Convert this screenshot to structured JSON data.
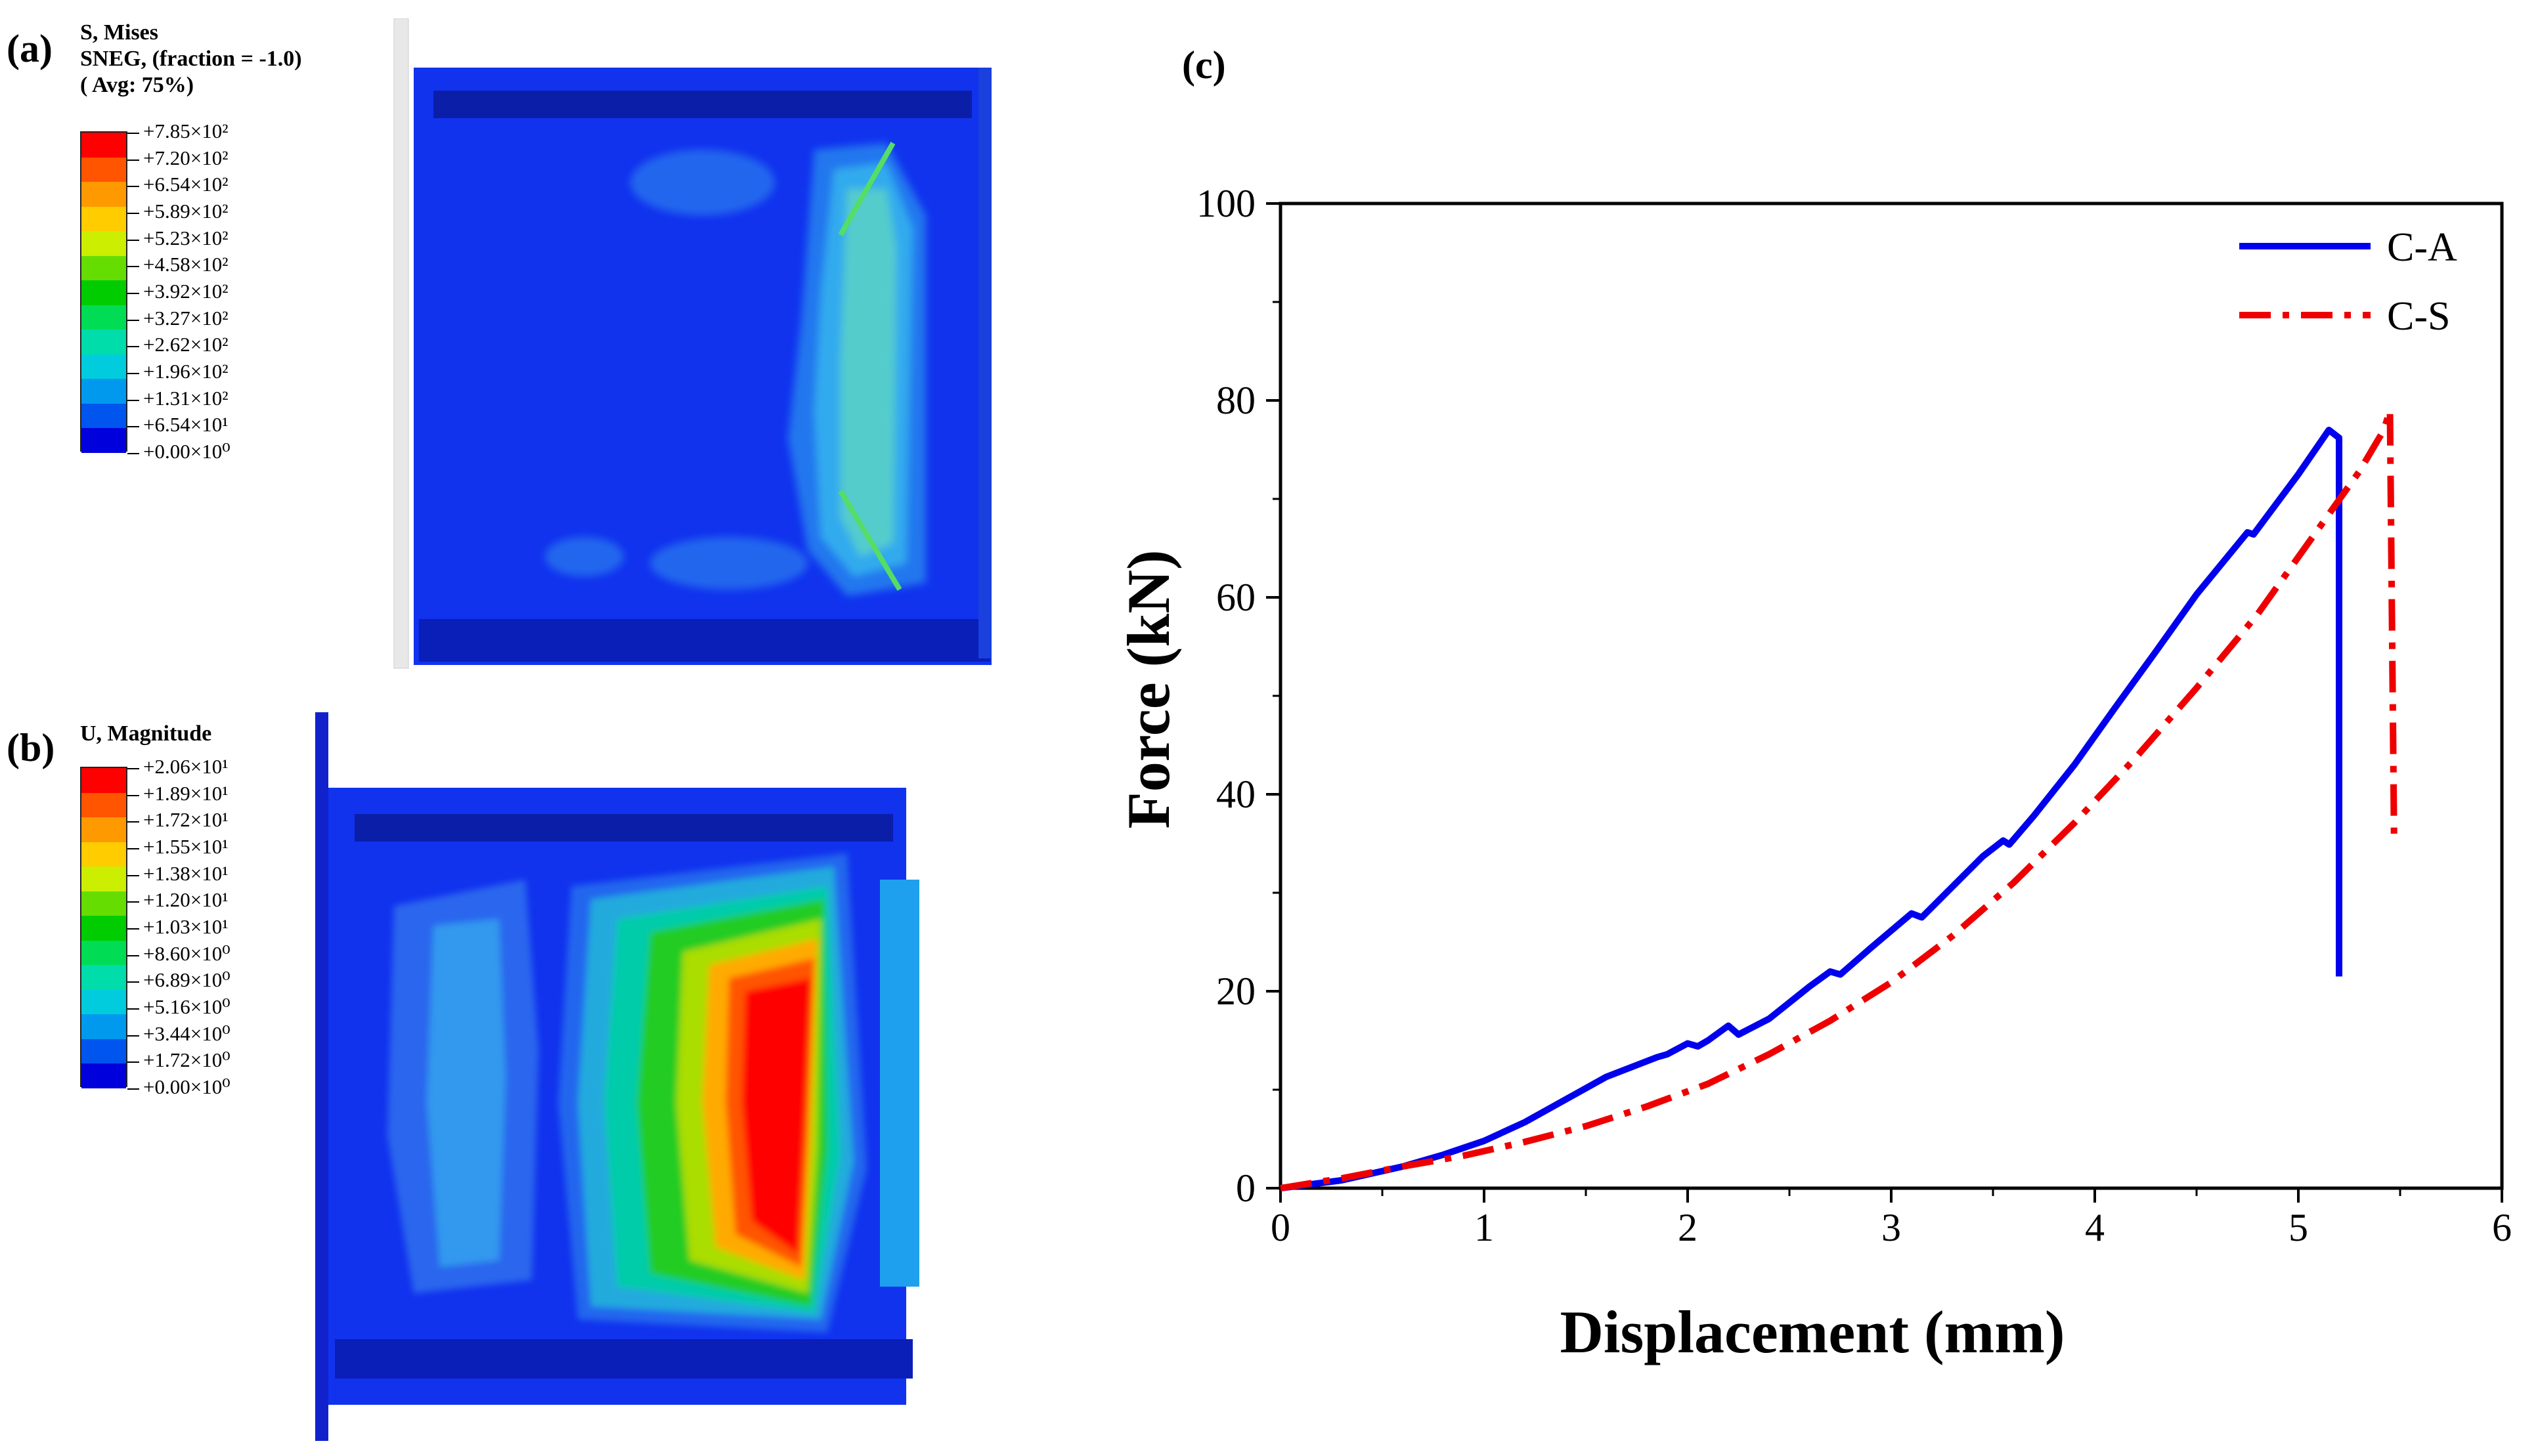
{
  "panel_a": {
    "label": "(a)",
    "title_lines": [
      "S, Mises",
      "SNEG, (fraction = -1.0)",
      "( Avg: 75%)"
    ],
    "ticks": [
      "+7.85×10²",
      "+7.20×10²",
      "+6.54×10²",
      "+5.89×10²",
      "+5.23×10²",
      "+4.58×10²",
      "+3.92×10²",
      "+3.27×10²",
      "+2.62×10²",
      "+1.96×10²",
      "+1.31×10²",
      "+6.54×10¹",
      "+0.00×10⁰"
    ]
  },
  "panel_b": {
    "label": "(b)",
    "title_lines": [
      "U, Magnitude"
    ],
    "ticks": [
      "+2.06×10¹",
      "+1.89×10¹",
      "+1.72×10¹",
      "+1.55×10¹",
      "+1.38×10¹",
      "+1.20×10¹",
      "+1.03×10¹",
      "+8.60×10⁰",
      "+6.89×10⁰",
      "+5.16×10⁰",
      "+3.44×10⁰",
      "+1.72×10⁰",
      "+0.00×10⁰"
    ]
  },
  "colormap": [
    "#ff0000",
    "#ff5500",
    "#ff9900",
    "#ffcc00",
    "#ccee00",
    "#66dd00",
    "#00cc00",
    "#00dd55",
    "#00ddaa",
    "#00ccdd",
    "#0099ee",
    "#0055ee",
    "#0000dd"
  ],
  "chart_data": {
    "panel_label": "(c)",
    "type": "line",
    "title": "",
    "xlabel": "Displacement (mm)",
    "ylabel": "Force (kN)",
    "xlim": [
      0,
      6
    ],
    "ylim": [
      0,
      100
    ],
    "xticks": [
      "0",
      "1",
      "2",
      "3",
      "4",
      "5",
      "6"
    ],
    "yticks": [
      "0",
      "20",
      "40",
      "60",
      "80",
      "100"
    ],
    "legend_position": "top-right",
    "series": [
      {
        "name": "C-A",
        "color": "#0000ee",
        "style": "solid",
        "x": [
          0,
          0.3,
          0.6,
          0.8,
          1.0,
          1.2,
          1.4,
          1.6,
          1.85,
          1.9,
          2.0,
          2.05,
          2.1,
          2.2,
          2.25,
          2.4,
          2.6,
          2.7,
          2.75,
          2.9,
          3.1,
          3.15,
          3.3,
          3.45,
          3.55,
          3.58,
          3.7,
          3.9,
          4.1,
          4.3,
          4.5,
          4.75,
          4.78,
          5.0,
          5.1,
          5.15,
          5.2,
          5.2
        ],
        "y": [
          0,
          0.8,
          2.2,
          3.4,
          4.8,
          6.7,
          9.0,
          11.3,
          13.3,
          13.6,
          14.7,
          14.4,
          15.0,
          16.5,
          15.6,
          17.2,
          20.5,
          22.0,
          21.7,
          24.4,
          27.9,
          27.5,
          30.6,
          33.7,
          35.3,
          34.9,
          37.8,
          43.0,
          48.8,
          54.5,
          60.3,
          66.6,
          66.4,
          72.5,
          75.5,
          77.0,
          76.2,
          21.5
        ]
      },
      {
        "name": "C-S",
        "color": "#ee0000",
        "style": "dashdot",
        "x": [
          0,
          0.3,
          0.6,
          0.9,
          1.2,
          1.5,
          1.8,
          2.1,
          2.4,
          2.7,
          3.0,
          3.3,
          3.6,
          3.9,
          4.2,
          4.5,
          4.8,
          5.1,
          5.3,
          5.42,
          5.45,
          5.47
        ],
        "y": [
          0,
          1.0,
          2.2,
          3.3,
          4.7,
          6.3,
          8.3,
          10.6,
          13.6,
          17.0,
          20.9,
          25.6,
          31.0,
          37.1,
          43.7,
          50.8,
          58.3,
          67.0,
          72.8,
          77.0,
          79.0,
          36.0
        ]
      }
    ]
  }
}
